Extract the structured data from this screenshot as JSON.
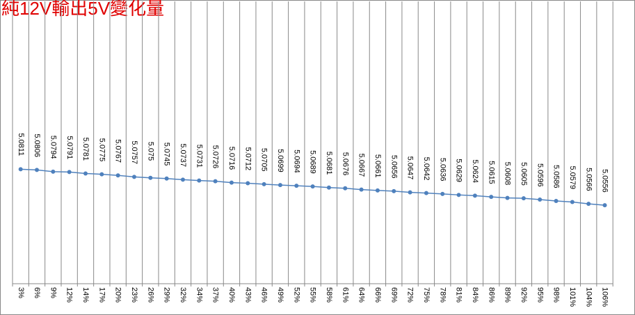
{
  "chart_data": {
    "type": "line",
    "title": "純12V輸出5V變化量",
    "categories": [
      "3%",
      "6%",
      "9%",
      "12%",
      "14%",
      "17%",
      "20%",
      "23%",
      "26%",
      "29%",
      "32%",
      "34%",
      "37%",
      "40%",
      "43%",
      "46%",
      "49%",
      "52%",
      "55%",
      "58%",
      "61%",
      "64%",
      "66%",
      "69%",
      "72%",
      "75%",
      "78%",
      "81%",
      "84%",
      "86%",
      "89%",
      "92%",
      "95%",
      "98%",
      "101%",
      "104%",
      "106%"
    ],
    "series": [
      {
        "color": "#4f81bd",
        "values": [
          5.0811,
          5.0806,
          5.0794,
          5.0791,
          5.0781,
          5.0775,
          5.0767,
          5.0757,
          5.075,
          5.0745,
          5.0737,
          5.0731,
          5.0726,
          5.0716,
          5.0712,
          5.0705,
          5.0699,
          5.0694,
          5.0689,
          5.0681,
          5.0676,
          5.0667,
          5.0661,
          5.0656,
          5.0647,
          5.0642,
          5.0636,
          5.0629,
          5.0624,
          5.0615,
          5.0608,
          5.0605,
          5.0596,
          5.0586,
          5.0579,
          5.0566,
          5.0556
        ],
        "value_labels": [
          "5.0811",
          "5.0806",
          "5.0794",
          "5.0791",
          "5.0781",
          "5.0775",
          "5.0767",
          "5.0757",
          "5.075",
          "5.0745",
          "5.0737",
          "5.0731",
          "5.0726",
          "5.0716",
          "5.0712",
          "5.0705",
          "5.0699",
          "5.0694",
          "5.0689",
          "5.0681",
          "5.0676",
          "5.0667",
          "5.0661",
          "5.0656",
          "5.0647",
          "5.0642",
          "5.0636",
          "5.0629",
          "5.0624",
          "5.0615",
          "5.0608",
          "5.0605",
          "5.0596",
          "5.0586",
          "5.0579",
          "5.0566",
          "5.0556"
        ]
      }
    ],
    "ylim": [
      5,
      5.2
    ],
    "grid": true
  }
}
